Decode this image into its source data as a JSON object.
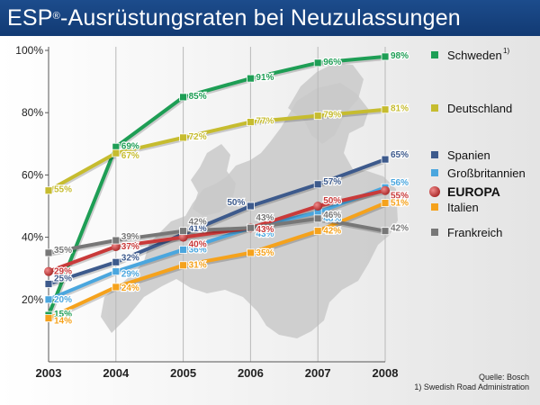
{
  "header": {
    "title_brand": "ESP",
    "title_mark": "®",
    "title_rest": "-Ausrüstungsraten bei Neuzulassungen"
  },
  "source": {
    "line1": "Quelle: Bosch",
    "line2": "1) Swedish Road Administration"
  },
  "colors": {
    "header": "#1c4c8c",
    "Schweden": "#1e9e55",
    "Deutschland": "#c6bc2f",
    "Spanien": "#3d5a8c",
    "Großbritannien": "#4aa6de",
    "EUROPA": "#c93a3a",
    "Italien": "#f5a21c",
    "Frankreich": "#777777"
  },
  "chart_data": {
    "type": "line",
    "x": [
      2003,
      2004,
      2005,
      2006,
      2007,
      2008
    ],
    "xlabel": "",
    "ylabel": "",
    "ylim": [
      0,
      100
    ],
    "y_ticks": [
      "20%",
      "40%",
      "60%",
      "80%",
      "100%"
    ],
    "legend_placement": "right",
    "series": [
      {
        "name": "Schweden",
        "footnote": "1)",
        "values": [
          15,
          69,
          85,
          91,
          96,
          98
        ],
        "labels": [
          "15%",
          "69%",
          "85%",
          "91%",
          "96%",
          "98%"
        ]
      },
      {
        "name": "Deutschland",
        "values": [
          55,
          67,
          72,
          77,
          79,
          81
        ],
        "labels": [
          "55%",
          "67%",
          "72%",
          "77%",
          "79%",
          "81%"
        ]
      },
      {
        "name": "Spanien",
        "values": [
          25,
          32,
          41,
          50,
          57,
          65
        ],
        "labels": [
          "25%",
          "32%",
          "41%",
          "50%",
          "57%",
          "65%"
        ]
      },
      {
        "name": "Großbritannien",
        "values": [
          20,
          29,
          36,
          43,
          48,
          56
        ],
        "labels": [
          "20%",
          "29%",
          "36%",
          "43%",
          "48%",
          "56%"
        ]
      },
      {
        "name": "EUROPA",
        "emphasis": true,
        "values": [
          29,
          37,
          40,
          43,
          50,
          55
        ],
        "labels": [
          "29%",
          "37%",
          "40%",
          "43%",
          "50%",
          "55%"
        ]
      },
      {
        "name": "Italien",
        "values": [
          14,
          24,
          31,
          35,
          42,
          51
        ],
        "labels": [
          "14%",
          "24%",
          "31%",
          "35%",
          "42%",
          "51%"
        ]
      },
      {
        "name": "Frankreich",
        "values": [
          35,
          39,
          42,
          43,
          46,
          42
        ],
        "labels": [
          "35%",
          "39%",
          "42%",
          "43%",
          "46%",
          "42%"
        ]
      }
    ]
  }
}
